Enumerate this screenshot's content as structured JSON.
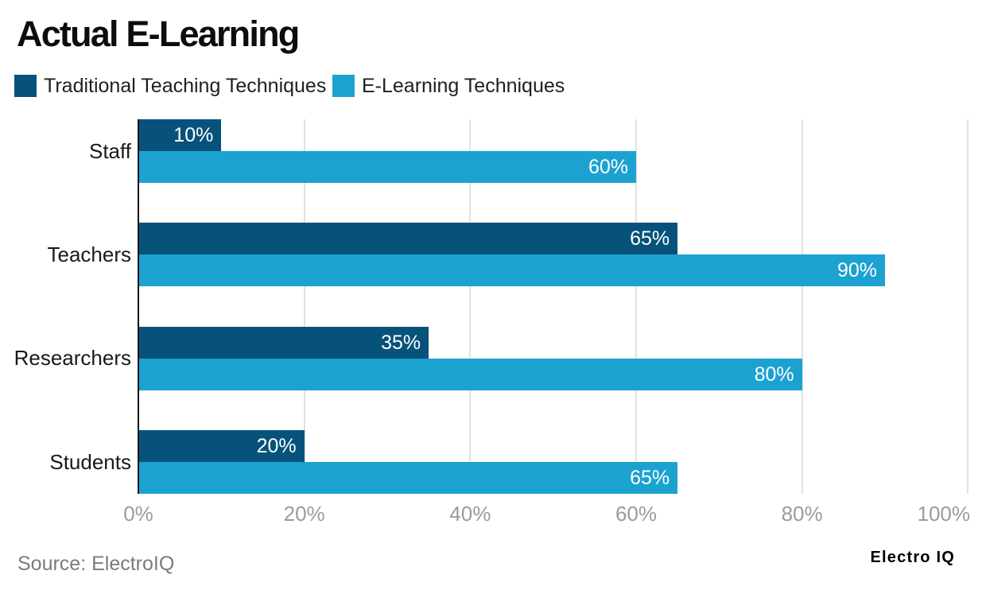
{
  "title": "Actual E-Learning",
  "footer": {
    "source": "Source: ElectroIQ",
    "logo": "Electro IQ"
  },
  "colors": {
    "traditional": "#07527b",
    "elearning": "#1ca2d1",
    "grid": "#e2e2e2",
    "axis_line": "#161616",
    "tick_label": "#9b9b9b",
    "category_label": "#1a1a1a",
    "bar_value_label": "#ffffff"
  },
  "chart_data": {
    "type": "bar",
    "orientation": "horizontal",
    "title": "Actual E-Learning",
    "categories": [
      "Staff",
      "Teachers",
      "Researchers",
      "Students"
    ],
    "series": [
      {
        "name": "Traditional Teaching Techniques",
        "color": "#07527b",
        "values": [
          10,
          65,
          35,
          20
        ],
        "labels": [
          "10%",
          "65%",
          "35%",
          "20%"
        ]
      },
      {
        "name": "E-Learning Techniques",
        "color": "#1ca2d1",
        "values": [
          60,
          90,
          80,
          65
        ],
        "labels": [
          "60%",
          "90%",
          "80%",
          "65%"
        ]
      }
    ],
    "value_suffix": "%",
    "xlim": [
      0,
      100
    ],
    "x_ticks": [
      {
        "value": 0,
        "label": "0%"
      },
      {
        "value": 20,
        "label": "20%"
      },
      {
        "value": 40,
        "label": "40%"
      },
      {
        "value": 60,
        "label": "60%"
      },
      {
        "value": 80,
        "label": "80%"
      },
      {
        "value": 100,
        "label": "100%"
      }
    ],
    "grid": true,
    "legend_position": "top-left",
    "xlabel": "",
    "ylabel": ""
  }
}
